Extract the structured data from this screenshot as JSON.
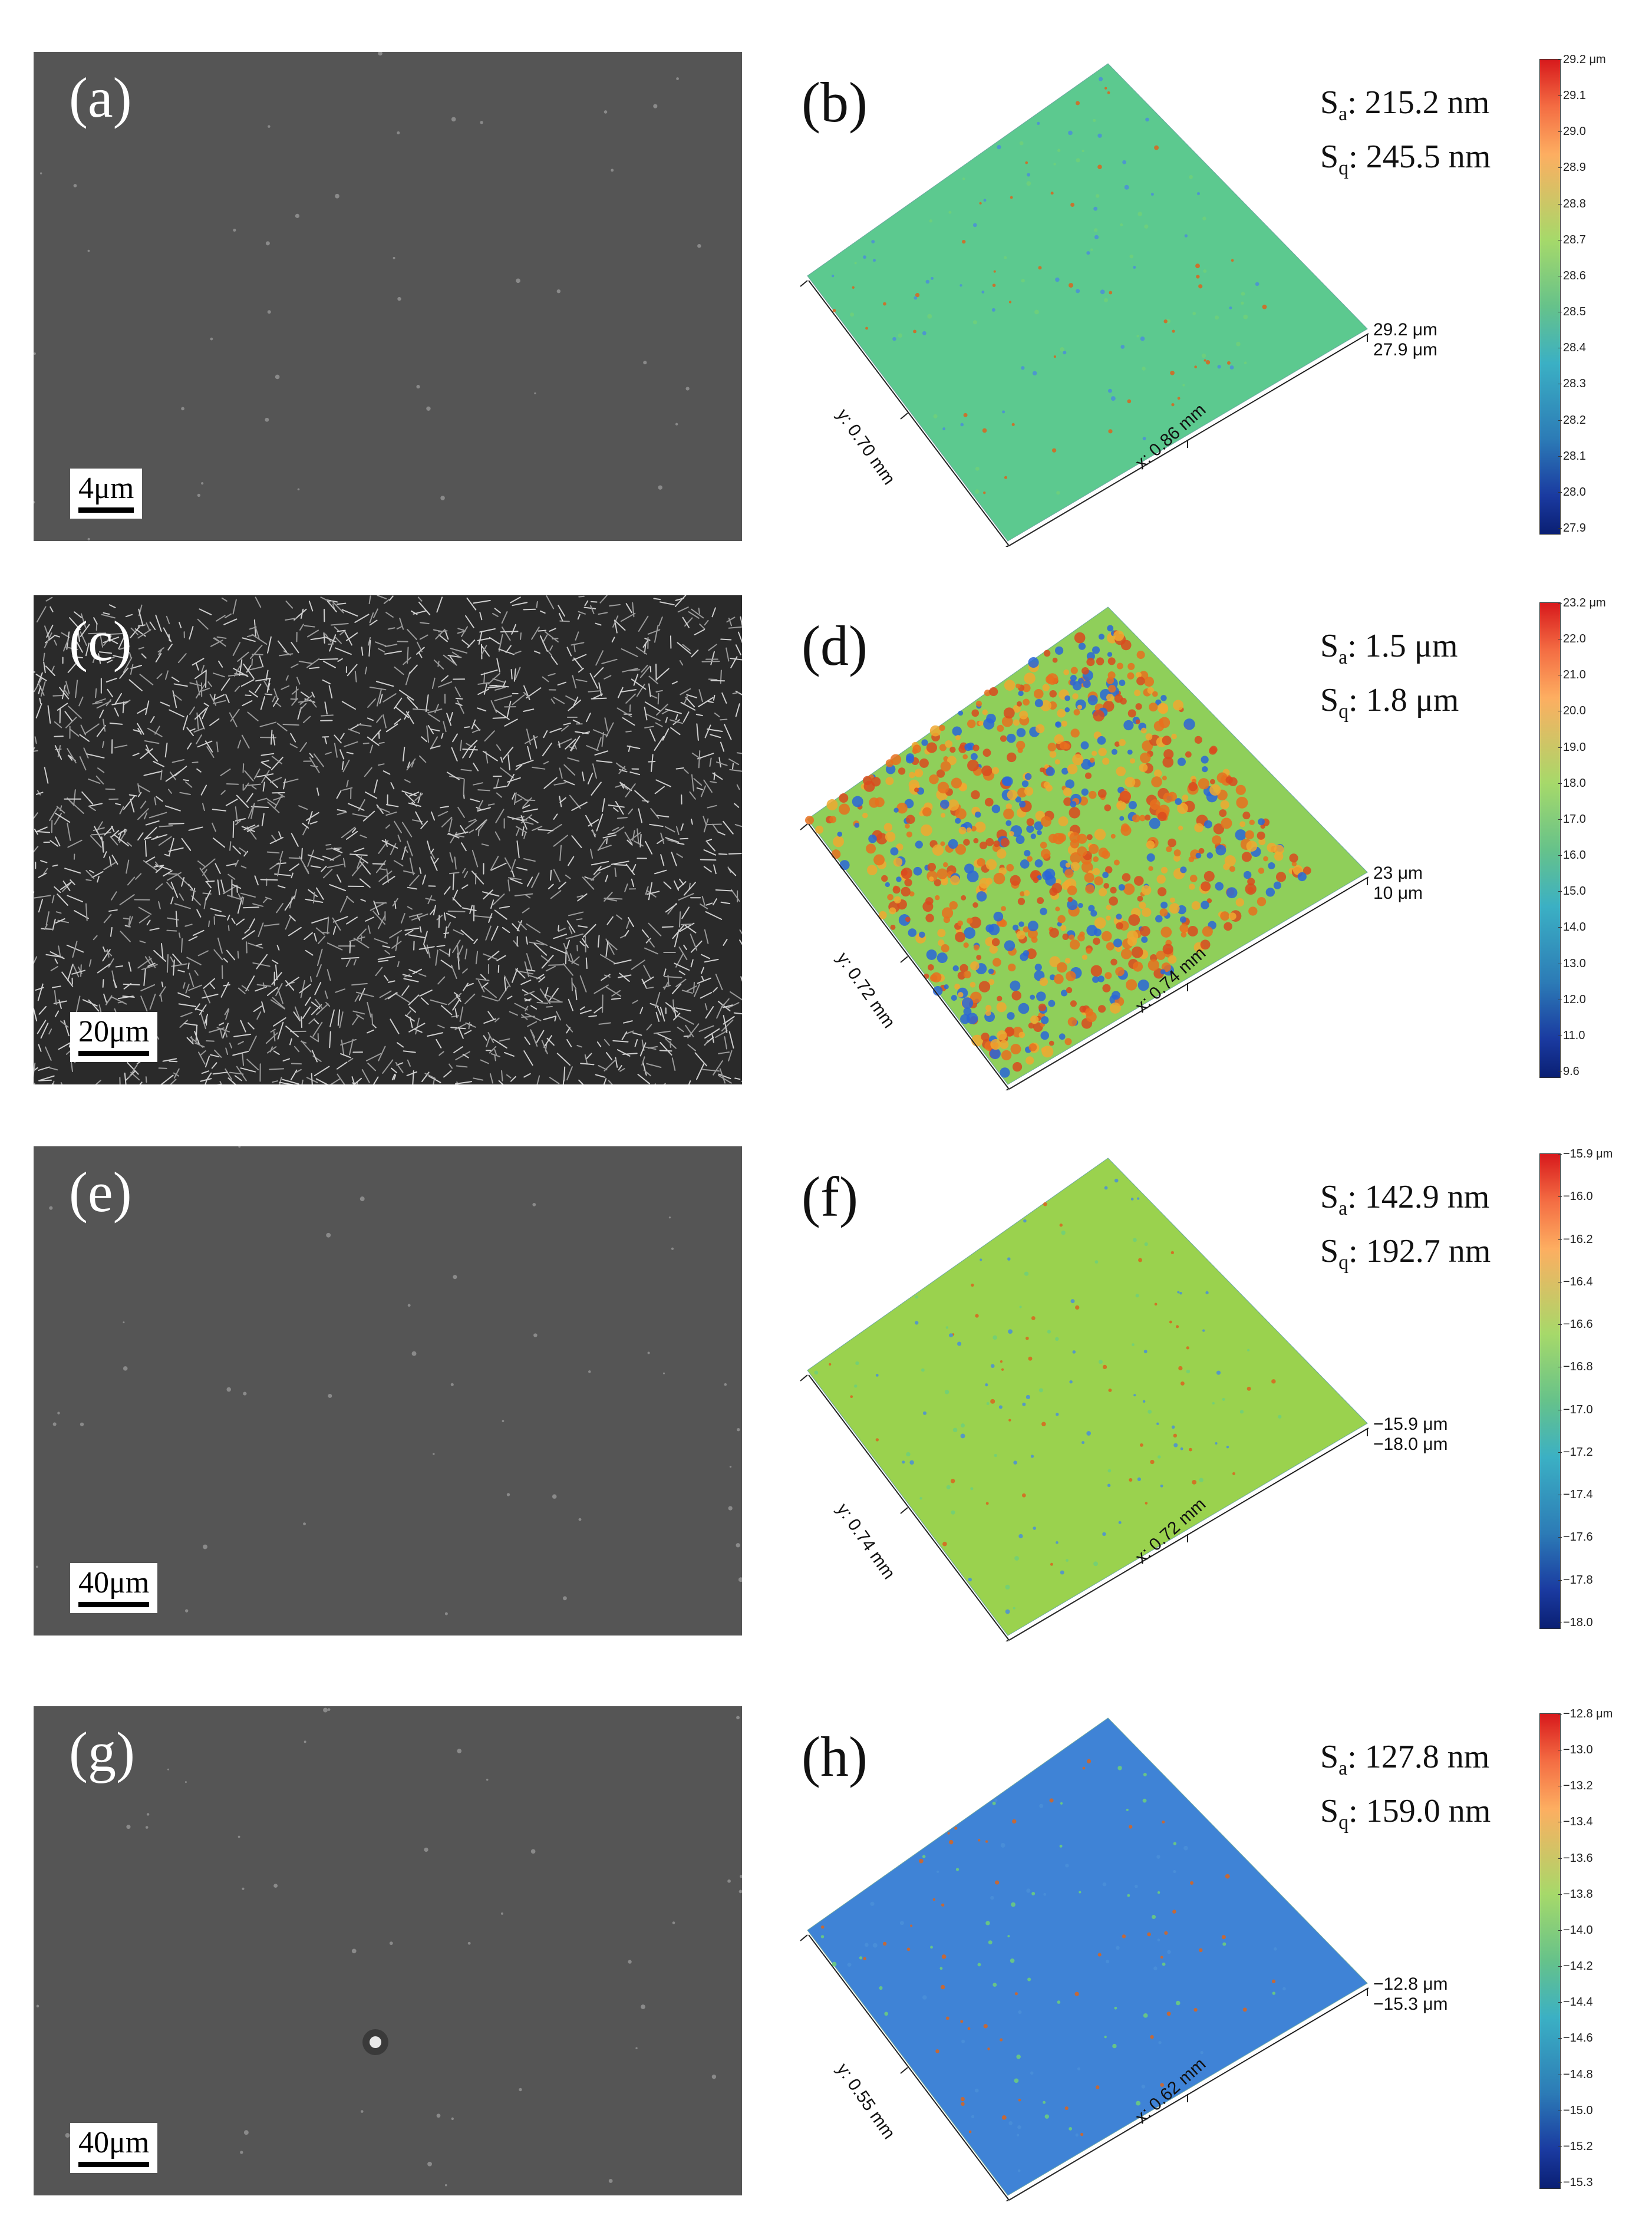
{
  "rows": [
    {
      "sem": {
        "letter": "(a)",
        "scale": "4μm",
        "texture": "smooth"
      },
      "topo": {
        "letter": "(b)",
        "sa_label": "S",
        "sa_sub": "a",
        "sa_value": ": 215.2 nm",
        "sq_label": "S",
        "sq_sub": "q",
        "sq_value": ": 245.5 nm",
        "y_axis": "y: 0.70 mm",
        "x_axis": "x: 0.86 mm",
        "z_top": "29.2 μm",
        "z_bottom": "27.9 μm",
        "colorbar": [
          "29.2 μm",
          "29.1",
          "29.0",
          "28.9",
          "28.8",
          "28.7",
          "28.6",
          "28.5",
          "28.4",
          "28.3",
          "28.2",
          "28.1",
          "28.0",
          "27.9"
        ],
        "surface_color": "#5cc98f"
      }
    },
    {
      "sem": {
        "letter": "(c)",
        "scale": "20μm",
        "texture": "cellular"
      },
      "topo": {
        "letter": "(d)",
        "sa_label": "S",
        "sa_sub": "a",
        "sa_value": ": 1.5 μm",
        "sq_label": "S",
        "sq_sub": "q",
        "sq_value": ": 1.8 μm",
        "y_axis": "y: 0.72 mm",
        "x_axis": "x: 0.74 mm",
        "z_top": "23 μm",
        "z_bottom": "10 μm",
        "colorbar": [
          "23.2 μm",
          "22.0",
          "21.0",
          "20.0",
          "19.0",
          "18.0",
          "17.0",
          "16.0",
          "15.0",
          "14.0",
          "13.0",
          "12.0",
          "11.0",
          "9.6"
        ],
        "surface_color": "#8fcf5a"
      }
    },
    {
      "sem": {
        "letter": "(e)",
        "scale": "40μm",
        "texture": "smooth"
      },
      "topo": {
        "letter": "(f)",
        "sa_label": "S",
        "sa_sub": "a",
        "sa_value": ": 142.9 nm",
        "sq_label": "S",
        "sq_sub": "q",
        "sq_value": ": 192.7 nm",
        "y_axis": "y: 0.74 mm",
        "x_axis": "x: 0.72 mm",
        "z_top": "−15.9 μm",
        "z_bottom": "−18.0 μm",
        "colorbar": [
          "−15.9 μm",
          "−16.0",
          "−16.2",
          "−16.4",
          "−16.6",
          "−16.8",
          "−17.0",
          "−17.2",
          "−17.4",
          "−17.6",
          "−17.8",
          "−18.0"
        ],
        "surface_color": "#9ad24e"
      }
    },
    {
      "sem": {
        "letter": "(g)",
        "scale": "40μm",
        "texture": "smooth"
      },
      "topo": {
        "letter": "(h)",
        "sa_label": "S",
        "sa_sub": "a",
        "sa_value": ": 127.8 nm",
        "sq_label": "S",
        "sq_sub": "q",
        "sq_value": ": 159.0 nm",
        "y_axis": "y: 0.55 mm",
        "x_axis": "x: 0.62 mm",
        "z_top": "−12.8 μm",
        "z_bottom": "−15.3 μm",
        "colorbar": [
          "−12.8 μm",
          "−13.0",
          "−13.2",
          "−13.4",
          "−13.6",
          "−13.8",
          "−14.0",
          "−14.2",
          "−14.4",
          "−14.6",
          "−14.8",
          "−15.0",
          "−15.2",
          "−15.3"
        ],
        "surface_color": "#3f83d6"
      }
    }
  ]
}
